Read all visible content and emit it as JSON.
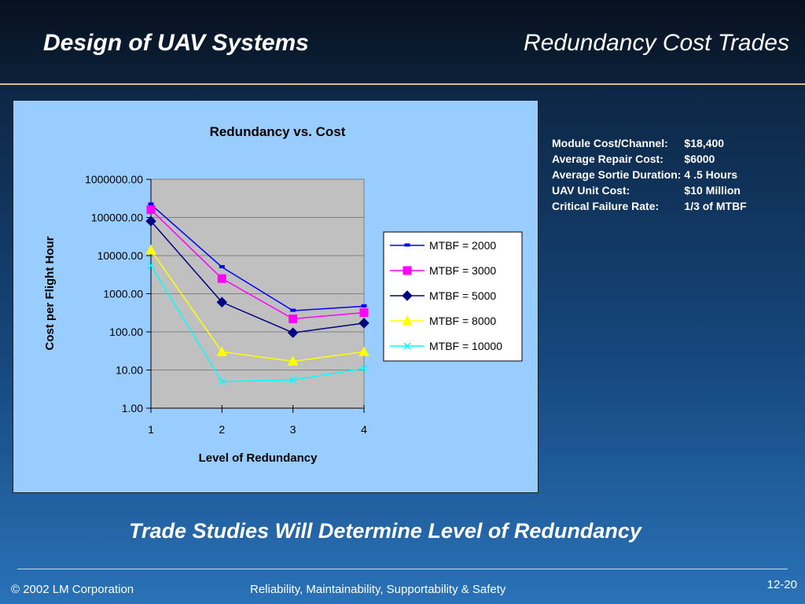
{
  "header": {
    "title_left": "Design of UAV Systems",
    "title_right": "Redundancy Cost Trades"
  },
  "info": [
    {
      "label": "Module Cost/Channel:",
      "value": "$18,400"
    },
    {
      "label": "Average Repair Cost:",
      "value": "$6000"
    },
    {
      "label": "Average Sortie Duration:",
      "value": "4 .5 Hours"
    },
    {
      "label": "UAV Unit Cost:",
      "value": "$10 Million"
    },
    {
      "label": "Critical Failure Rate:",
      "value": "1/3 of MTBF"
    }
  ],
  "tagline": "Trade Studies Will Determine Level of Redundancy",
  "footer": {
    "copyright": "© 2002 LM Corporation",
    "subject": "Reliability, Maintainability, Supportability & Safety",
    "page": "12-20"
  },
  "chart_data": {
    "type": "line",
    "title": "Redundancy vs. Cost",
    "xlabel": "Level of Redundancy",
    "ylabel": "Cost per Flight Hour",
    "y_scale": "log",
    "ylim": [
      1,
      1000000
    ],
    "y_ticks": [
      "1.00",
      "10.00",
      "100.00",
      "1000.00",
      "10000.00",
      "100000.00",
      "1000000.00"
    ],
    "x": [
      1,
      2,
      3,
      4
    ],
    "grid": "horizontal major gridlines",
    "legend_position": "right",
    "series": [
      {
        "name": "MTBF = 2000",
        "values": [
          220000,
          5000,
          360,
          470
        ],
        "color": "#0000ff",
        "marker": "dash"
      },
      {
        "name": "MTBF = 3000",
        "values": [
          160000,
          2500,
          220,
          320
        ],
        "color": "#ff00ff",
        "marker": "square"
      },
      {
        "name": "MTBF = 5000",
        "values": [
          80000,
          600,
          95,
          170
        ],
        "color": "#000080",
        "marker": "diamond"
      },
      {
        "name": "MTBF = 8000",
        "values": [
          14000,
          30,
          17,
          30
        ],
        "color": "#ffff00",
        "marker": "triangle"
      },
      {
        "name": "MTBF = 10000",
        "values": [
          5500,
          5,
          5.5,
          11
        ],
        "color": "#00ffff",
        "marker": "x"
      }
    ]
  }
}
